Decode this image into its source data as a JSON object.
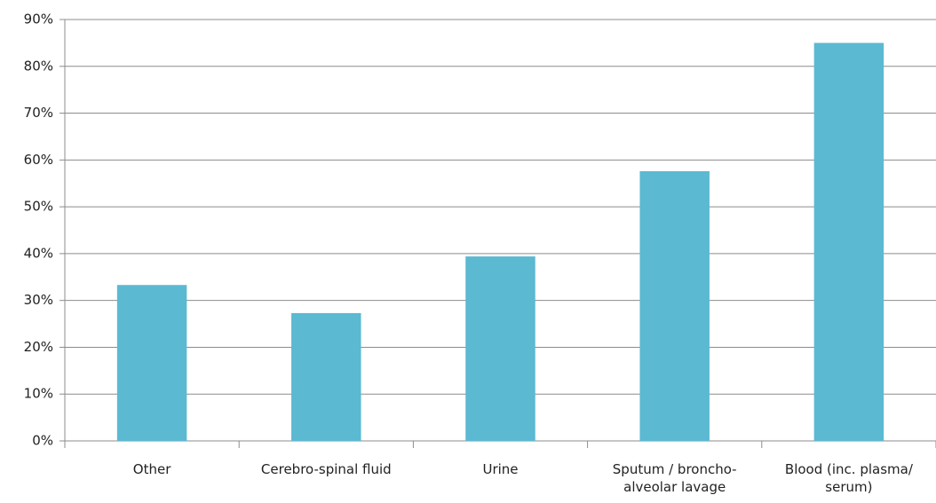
{
  "chart_data": {
    "type": "bar",
    "categories": [
      "Other",
      "Cerebro-spinal fluid",
      "Urine",
      "Sputum / broncho-alveolar lavage",
      "Blood (inc. plasma/ serum)"
    ],
    "values": [
      33.3,
      27.3,
      39.4,
      57.6,
      85
    ],
    "color": "#5bb9d2",
    "ylim": [
      0,
      90
    ],
    "yticks": [
      {
        "value": 0,
        "label": "0%"
      },
      {
        "value": 10,
        "label": "10%"
      },
      {
        "value": 20,
        "label": "20%"
      },
      {
        "value": 30,
        "label": "30%"
      },
      {
        "value": 40,
        "label": "40%"
      },
      {
        "value": 50,
        "label": "50%"
      },
      {
        "value": 60,
        "label": "60%"
      },
      {
        "value": 70,
        "label": "70%"
      },
      {
        "value": 80,
        "label": "80%"
      },
      {
        "value": 90,
        "label": "90%"
      }
    ],
    "grid": true
  }
}
